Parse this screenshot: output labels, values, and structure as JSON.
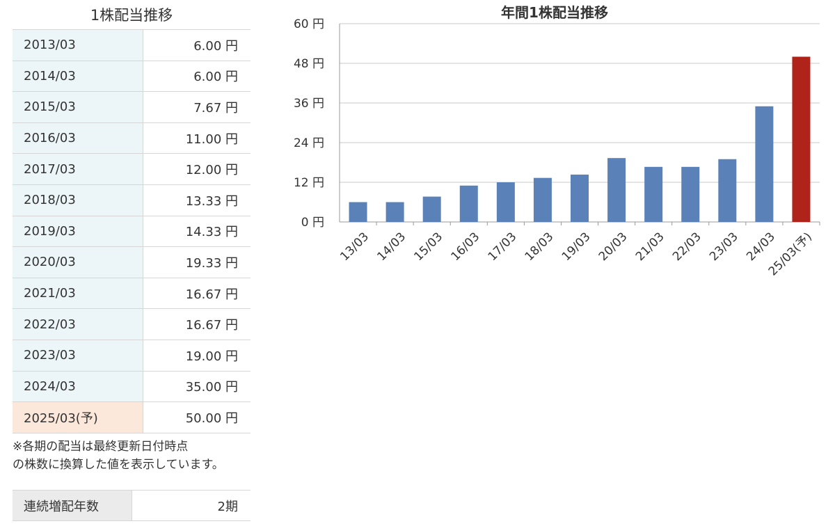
{
  "table": {
    "title": "1株配当推移",
    "rows": [
      {
        "period": "2013/03",
        "amount": "6.00 円"
      },
      {
        "period": "2014/03",
        "amount": "6.00 円"
      },
      {
        "period": "2015/03",
        "amount": "7.67 円"
      },
      {
        "period": "2016/03",
        "amount": "11.00 円"
      },
      {
        "period": "2017/03",
        "amount": "12.00 円"
      },
      {
        "period": "2018/03",
        "amount": "13.33 円"
      },
      {
        "period": "2019/03",
        "amount": "14.33 円"
      },
      {
        "period": "2020/03",
        "amount": "19.33 円"
      },
      {
        "period": "2021/03",
        "amount": "16.67 円"
      },
      {
        "period": "2022/03",
        "amount": "16.67 円"
      },
      {
        "period": "2023/03",
        "amount": "19.00 円"
      },
      {
        "period": "2024/03",
        "amount": "35.00 円"
      },
      {
        "period": "2025/03(予)",
        "amount": "50.00 円"
      }
    ],
    "note_line1": "※各期の配当は最終更新日付時点",
    "note_line2": "の株数に換算した値を表示しています。"
  },
  "streak": {
    "label": "連続増配年数",
    "value": "2期"
  },
  "colors": {
    "bar": "#5b82b8",
    "bar_forecast": "#b0231b",
    "row_bg": "#ecf6f8",
    "row_bg_forecast": "#fce8da"
  },
  "chart_data": {
    "type": "bar",
    "title": "年間1株配当推移",
    "categories": [
      "13/03",
      "14/03",
      "15/03",
      "16/03",
      "17/03",
      "18/03",
      "19/03",
      "20/03",
      "21/03",
      "22/03",
      "23/03",
      "24/03",
      "25/03(予)"
    ],
    "values": [
      6.0,
      6.0,
      7.67,
      11.0,
      12.0,
      13.33,
      14.33,
      19.33,
      16.67,
      16.67,
      19.0,
      35.0,
      50.0
    ],
    "forecast_index": 12,
    "ylim": [
      0,
      60
    ],
    "yticks": [
      0,
      12,
      24,
      36,
      48,
      60
    ],
    "ytick_labels": [
      "0 円",
      "12 円",
      "24 円",
      "36 円",
      "48 円",
      "60 円"
    ],
    "xlabel": "",
    "ylabel": "",
    "grid": true,
    "legend": "none"
  }
}
